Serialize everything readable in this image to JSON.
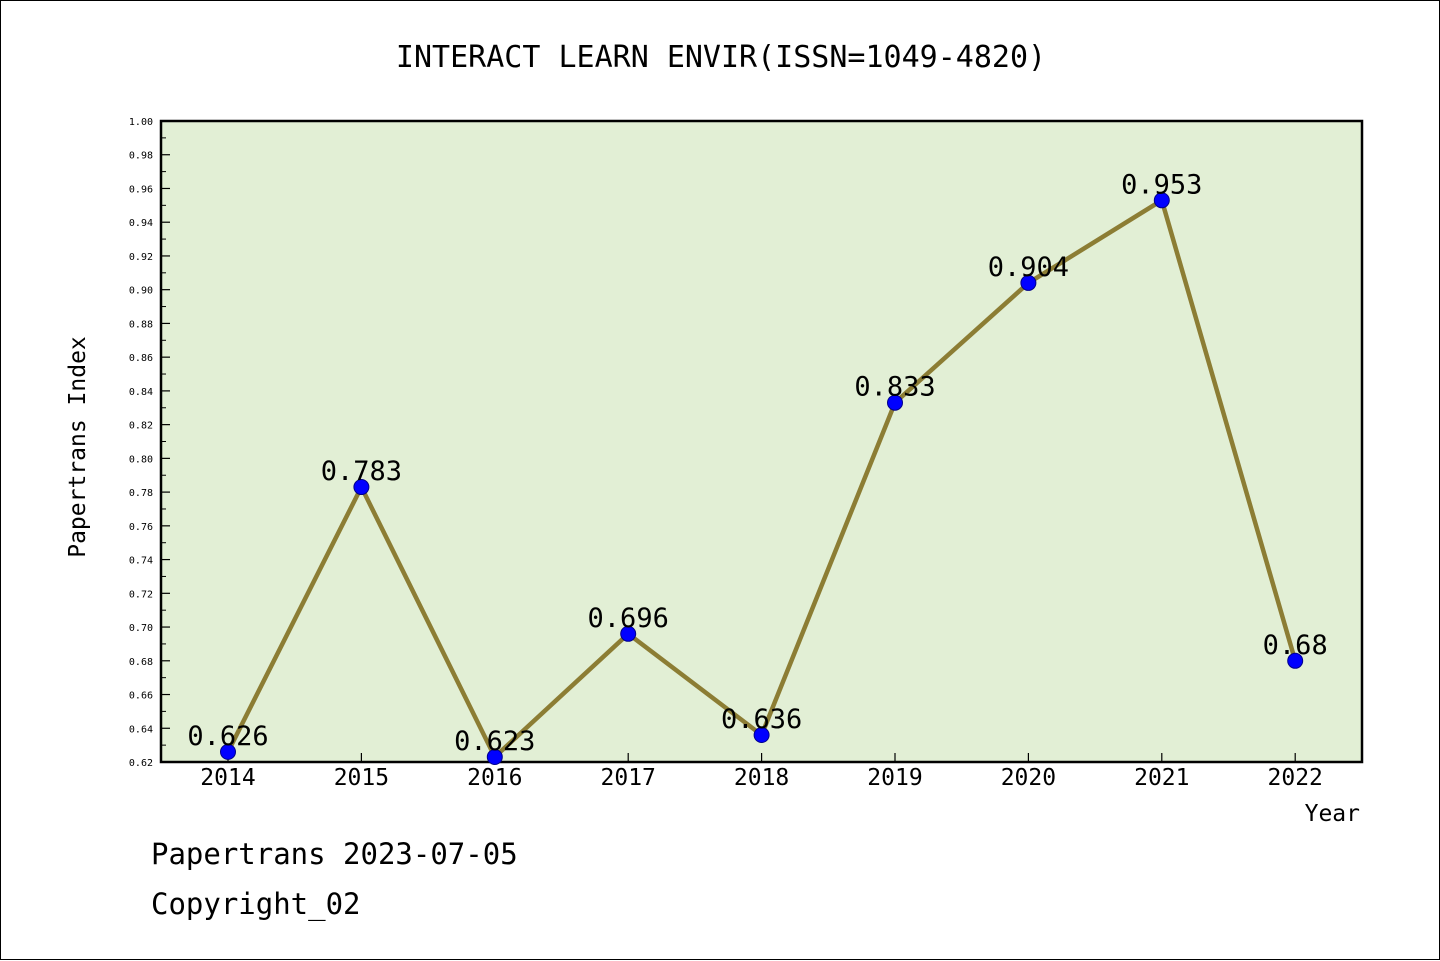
{
  "chart_data": {
    "type": "line",
    "title": "INTERACT LEARN ENVIR(ISSN=1049-4820)",
    "xlabel": "Year",
    "ylabel": "Papertrans Index",
    "categories": [
      "2014",
      "2015",
      "2016",
      "2017",
      "2018",
      "2019",
      "2020",
      "2021",
      "2022"
    ],
    "values": [
      0.626,
      0.783,
      0.623,
      0.696,
      0.636,
      0.833,
      0.904,
      0.953,
      0.68
    ],
    "data_labels": [
      "0.626",
      "0.783",
      "0.623",
      "0.696",
      "0.636",
      "0.833",
      "0.904",
      "0.953",
      "0.68"
    ],
    "ylim": [
      0.62,
      1.0
    ],
    "yticks": [
      "0.62",
      "0.64",
      "0.66",
      "0.68",
      "0.70",
      "0.72",
      "0.74",
      "0.76",
      "0.78",
      "0.80",
      "0.82",
      "0.84",
      "0.86",
      "0.88",
      "0.90",
      "0.92",
      "0.94",
      "0.96",
      "0.98",
      "1.00"
    ],
    "grid": false,
    "colors": {
      "plot_background": "#e2efd5",
      "line": "#8c7d34",
      "marker": "#0000ff"
    }
  },
  "footer": {
    "line1": "Papertrans 2023-07-05",
    "line2": "Copyright_02"
  }
}
